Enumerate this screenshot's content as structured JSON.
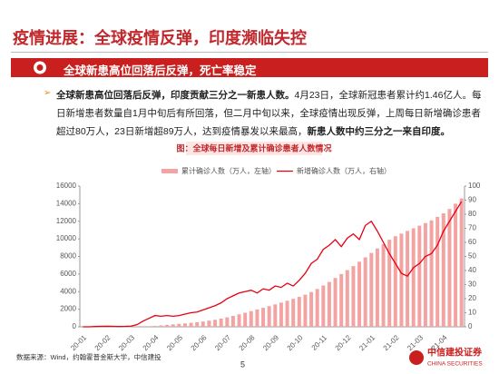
{
  "header": {
    "title": "疫情进展：全球疫情反弹，印度濒临失控"
  },
  "banner": {
    "title": "全球新患高位回落后反弹，死亡率稳定"
  },
  "paragraph": [
    "全球新患高位回落后反弹，印度贡献三分之一新患人数。",
    "4月23日，全球新冠患者累计约1.46亿人。每日新增患者数量自1月中旬后有所回落，但二月中旬以来，全球疫情出现反弹，上周每日新增确诊患者超过80万人，23日新增超89万人，达到疫情暴发以来最高，",
    "新患人数中约三分之一来自印度。"
  ],
  "footer": {
    "source": "数据来源：Wind，约翰霍普金斯大学，中信建投",
    "page_number": 5,
    "logo_cn": "中信建投证券",
    "logo_en": "CHINA SECURITIES"
  },
  "chart_data": {
    "type": "combo",
    "title": "图：全球每日新增及累计确诊患者人数情况",
    "categories": [
      "20-01",
      null,
      null,
      null,
      "20-02",
      null,
      null,
      null,
      "20-03",
      null,
      null,
      null,
      "20-04",
      null,
      null,
      null,
      "20-05",
      null,
      null,
      null,
      "20-06",
      null,
      null,
      null,
      "20-07",
      null,
      null,
      null,
      "20-08",
      null,
      null,
      null,
      "20-09",
      null,
      null,
      null,
      "20-10",
      null,
      null,
      null,
      "20-11",
      null,
      null,
      null,
      "20-12",
      null,
      null,
      null,
      "21-01",
      null,
      null,
      null,
      "21-02",
      null,
      null,
      null,
      "21-03",
      null,
      null,
      null,
      "21-04",
      null,
      null,
      null
    ],
    "series": [
      {
        "name": "累计确诊人数（万人，左轴）",
        "type": "bar",
        "axis": "y",
        "color": "#f4a3a3",
        "values": [
          0,
          0,
          1,
          1,
          2,
          4,
          7,
          8,
          9,
          13,
          30,
          70,
          100,
          160,
          220,
          280,
          330,
          390,
          450,
          520,
          600,
          700,
          800,
          930,
          1070,
          1240,
          1420,
          1600,
          1780,
          1970,
          2160,
          2350,
          2550,
          2750,
          2960,
          3180,
          3400,
          3650,
          3950,
          4300,
          4700,
          5100,
          5550,
          6000,
          6450,
          6900,
          7400,
          7900,
          8400,
          8900,
          9400,
          9900,
          10300,
          10600,
          10900,
          11200,
          11500,
          11800,
          12100,
          12500,
          12900,
          13400,
          14000,
          14600
        ]
      },
      {
        "name": "新增确诊人数（万人，右轴）",
        "type": "line",
        "axis": "y2",
        "color": "#e60012",
        "values": [
          0,
          0,
          0.2,
          0.3,
          0.4,
          0.3,
          0.2,
          0.3,
          0.5,
          1.5,
          4,
          6,
          8,
          7.5,
          8,
          7.5,
          8,
          9,
          10,
          10.5,
          12,
          13.5,
          15,
          17,
          20,
          22,
          24,
          25,
          26,
          24,
          27,
          26,
          29,
          28,
          31,
          29,
          33,
          38,
          45,
          48,
          55,
          58,
          62,
          57,
          63,
          66,
          62,
          72,
          75,
          68,
          60,
          52,
          45,
          38,
          36,
          42,
          45,
          50,
          52,
          58,
          68,
          75,
          82,
          89
        ]
      }
    ],
    "ylim": [
      0,
      16000
    ],
    "yticks": [
      0,
      2000,
      4000,
      6000,
      8000,
      10000,
      12000,
      14000,
      16000
    ],
    "y2lim": [
      0,
      100
    ],
    "y2ticks": [
      0,
      10,
      20,
      30,
      40,
      50,
      60,
      70,
      80,
      90,
      100
    ],
    "grid": false
  }
}
